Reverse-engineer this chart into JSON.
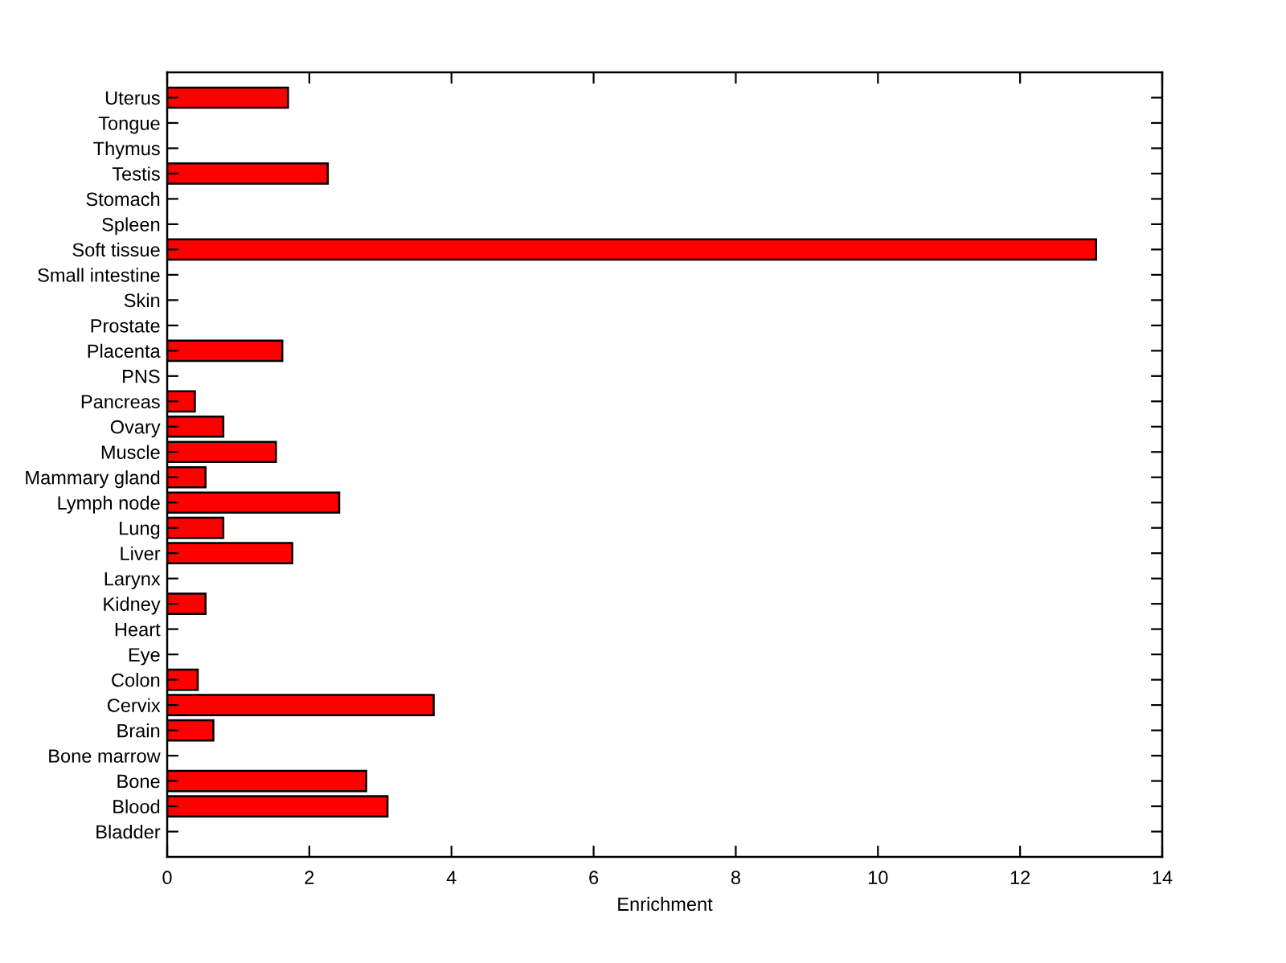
{
  "chart_data": {
    "type": "bar",
    "orientation": "horizontal",
    "categories": [
      "Uterus",
      "Tongue",
      "Thymus",
      "Testis",
      "Stomach",
      "Spleen",
      "Soft tissue",
      "Small intestine",
      "Skin",
      "Prostate",
      "Placenta",
      "PNS",
      "Pancreas",
      "Ovary",
      "Muscle",
      "Mammary gland",
      "Lymph node",
      "Lung",
      "Liver",
      "Larynx",
      "Kidney",
      "Heart",
      "Eye",
      "Colon",
      "Cervix",
      "Brain",
      "Bone marrow",
      "Bone",
      "Blood",
      "Bladder"
    ],
    "values": [
      1.7,
      0,
      0,
      2.26,
      0,
      0,
      13.07,
      0,
      0,
      0,
      1.62,
      0,
      0.39,
      0.79,
      1.53,
      0.54,
      2.42,
      0.79,
      1.76,
      0,
      0.54,
      0,
      0,
      0.43,
      3.75,
      0.65,
      0,
      2.8,
      3.1,
      0
    ],
    "color": "#ff0000",
    "xlabel": "Enrichment",
    "xlim": [
      0,
      14
    ],
    "xticks": [
      0,
      2,
      4,
      6,
      8,
      10,
      12,
      14
    ],
    "grid": false,
    "legend": false
  }
}
